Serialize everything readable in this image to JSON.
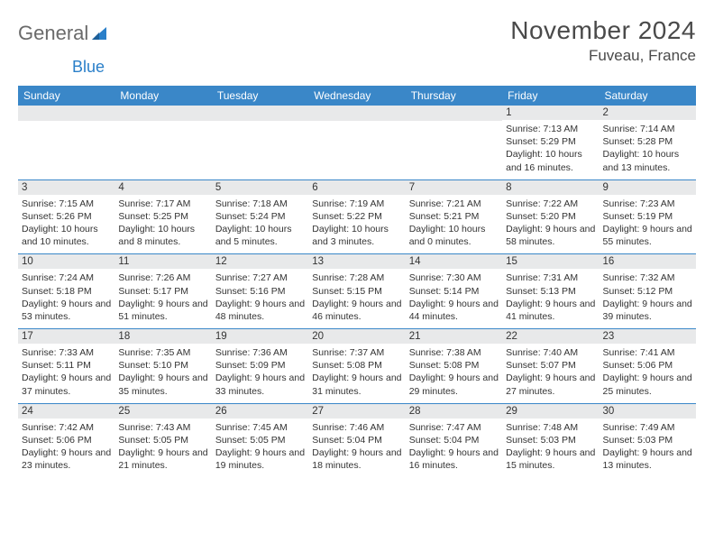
{
  "logo": {
    "text1": "General",
    "text2": "Blue"
  },
  "header": {
    "month_title": "November 2024",
    "location": "Fuveau, France"
  },
  "colors": {
    "header_bg": "#3a87c8",
    "daynum_bg": "#e8e9ea",
    "border": "#3a87c8"
  },
  "weekdays": [
    "Sunday",
    "Monday",
    "Tuesday",
    "Wednesday",
    "Thursday",
    "Friday",
    "Saturday"
  ],
  "weeks": [
    [
      {
        "day": "",
        "sunrise": "",
        "sunset": "",
        "daylight": ""
      },
      {
        "day": "",
        "sunrise": "",
        "sunset": "",
        "daylight": ""
      },
      {
        "day": "",
        "sunrise": "",
        "sunset": "",
        "daylight": ""
      },
      {
        "day": "",
        "sunrise": "",
        "sunset": "",
        "daylight": ""
      },
      {
        "day": "",
        "sunrise": "",
        "sunset": "",
        "daylight": ""
      },
      {
        "day": "1",
        "sunrise": "Sunrise: 7:13 AM",
        "sunset": "Sunset: 5:29 PM",
        "daylight": "Daylight: 10 hours and 16 minutes."
      },
      {
        "day": "2",
        "sunrise": "Sunrise: 7:14 AM",
        "sunset": "Sunset: 5:28 PM",
        "daylight": "Daylight: 10 hours and 13 minutes."
      }
    ],
    [
      {
        "day": "3",
        "sunrise": "Sunrise: 7:15 AM",
        "sunset": "Sunset: 5:26 PM",
        "daylight": "Daylight: 10 hours and 10 minutes."
      },
      {
        "day": "4",
        "sunrise": "Sunrise: 7:17 AM",
        "sunset": "Sunset: 5:25 PM",
        "daylight": "Daylight: 10 hours and 8 minutes."
      },
      {
        "day": "5",
        "sunrise": "Sunrise: 7:18 AM",
        "sunset": "Sunset: 5:24 PM",
        "daylight": "Daylight: 10 hours and 5 minutes."
      },
      {
        "day": "6",
        "sunrise": "Sunrise: 7:19 AM",
        "sunset": "Sunset: 5:22 PM",
        "daylight": "Daylight: 10 hours and 3 minutes."
      },
      {
        "day": "7",
        "sunrise": "Sunrise: 7:21 AM",
        "sunset": "Sunset: 5:21 PM",
        "daylight": "Daylight: 10 hours and 0 minutes."
      },
      {
        "day": "8",
        "sunrise": "Sunrise: 7:22 AM",
        "sunset": "Sunset: 5:20 PM",
        "daylight": "Daylight: 9 hours and 58 minutes."
      },
      {
        "day": "9",
        "sunrise": "Sunrise: 7:23 AM",
        "sunset": "Sunset: 5:19 PM",
        "daylight": "Daylight: 9 hours and 55 minutes."
      }
    ],
    [
      {
        "day": "10",
        "sunrise": "Sunrise: 7:24 AM",
        "sunset": "Sunset: 5:18 PM",
        "daylight": "Daylight: 9 hours and 53 minutes."
      },
      {
        "day": "11",
        "sunrise": "Sunrise: 7:26 AM",
        "sunset": "Sunset: 5:17 PM",
        "daylight": "Daylight: 9 hours and 51 minutes."
      },
      {
        "day": "12",
        "sunrise": "Sunrise: 7:27 AM",
        "sunset": "Sunset: 5:16 PM",
        "daylight": "Daylight: 9 hours and 48 minutes."
      },
      {
        "day": "13",
        "sunrise": "Sunrise: 7:28 AM",
        "sunset": "Sunset: 5:15 PM",
        "daylight": "Daylight: 9 hours and 46 minutes."
      },
      {
        "day": "14",
        "sunrise": "Sunrise: 7:30 AM",
        "sunset": "Sunset: 5:14 PM",
        "daylight": "Daylight: 9 hours and 44 minutes."
      },
      {
        "day": "15",
        "sunrise": "Sunrise: 7:31 AM",
        "sunset": "Sunset: 5:13 PM",
        "daylight": "Daylight: 9 hours and 41 minutes."
      },
      {
        "day": "16",
        "sunrise": "Sunrise: 7:32 AM",
        "sunset": "Sunset: 5:12 PM",
        "daylight": "Daylight: 9 hours and 39 minutes."
      }
    ],
    [
      {
        "day": "17",
        "sunrise": "Sunrise: 7:33 AM",
        "sunset": "Sunset: 5:11 PM",
        "daylight": "Daylight: 9 hours and 37 minutes."
      },
      {
        "day": "18",
        "sunrise": "Sunrise: 7:35 AM",
        "sunset": "Sunset: 5:10 PM",
        "daylight": "Daylight: 9 hours and 35 minutes."
      },
      {
        "day": "19",
        "sunrise": "Sunrise: 7:36 AM",
        "sunset": "Sunset: 5:09 PM",
        "daylight": "Daylight: 9 hours and 33 minutes."
      },
      {
        "day": "20",
        "sunrise": "Sunrise: 7:37 AM",
        "sunset": "Sunset: 5:08 PM",
        "daylight": "Daylight: 9 hours and 31 minutes."
      },
      {
        "day": "21",
        "sunrise": "Sunrise: 7:38 AM",
        "sunset": "Sunset: 5:08 PM",
        "daylight": "Daylight: 9 hours and 29 minutes."
      },
      {
        "day": "22",
        "sunrise": "Sunrise: 7:40 AM",
        "sunset": "Sunset: 5:07 PM",
        "daylight": "Daylight: 9 hours and 27 minutes."
      },
      {
        "day": "23",
        "sunrise": "Sunrise: 7:41 AM",
        "sunset": "Sunset: 5:06 PM",
        "daylight": "Daylight: 9 hours and 25 minutes."
      }
    ],
    [
      {
        "day": "24",
        "sunrise": "Sunrise: 7:42 AM",
        "sunset": "Sunset: 5:06 PM",
        "daylight": "Daylight: 9 hours and 23 minutes."
      },
      {
        "day": "25",
        "sunrise": "Sunrise: 7:43 AM",
        "sunset": "Sunset: 5:05 PM",
        "daylight": "Daylight: 9 hours and 21 minutes."
      },
      {
        "day": "26",
        "sunrise": "Sunrise: 7:45 AM",
        "sunset": "Sunset: 5:05 PM",
        "daylight": "Daylight: 9 hours and 19 minutes."
      },
      {
        "day": "27",
        "sunrise": "Sunrise: 7:46 AM",
        "sunset": "Sunset: 5:04 PM",
        "daylight": "Daylight: 9 hours and 18 minutes."
      },
      {
        "day": "28",
        "sunrise": "Sunrise: 7:47 AM",
        "sunset": "Sunset: 5:04 PM",
        "daylight": "Daylight: 9 hours and 16 minutes."
      },
      {
        "day": "29",
        "sunrise": "Sunrise: 7:48 AM",
        "sunset": "Sunset: 5:03 PM",
        "daylight": "Daylight: 9 hours and 15 minutes."
      },
      {
        "day": "30",
        "sunrise": "Sunrise: 7:49 AM",
        "sunset": "Sunset: 5:03 PM",
        "daylight": "Daylight: 9 hours and 13 minutes."
      }
    ]
  ]
}
